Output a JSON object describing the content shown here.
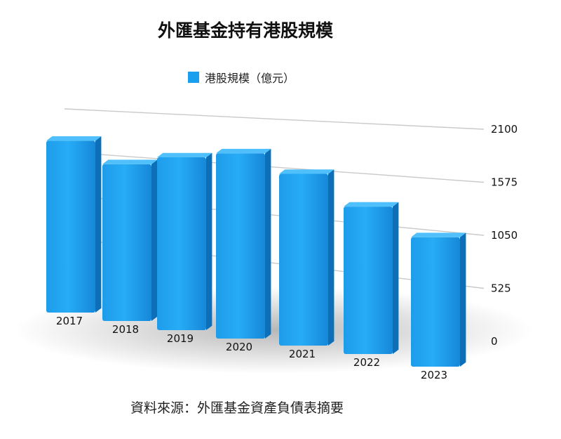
{
  "chart_data": {
    "type": "bar",
    "title": "外匯基金持有港股規模",
    "categories": [
      "2017",
      "2018",
      "2019",
      "2020",
      "2021",
      "2022",
      "2023"
    ],
    "series": [
      {
        "name": "港股規模（億元）",
        "values": [
          2090,
          1850,
          1980,
          2060,
          1850,
          1540,
          1310
        ],
        "color": "#1a9fee"
      }
    ],
    "yticks": [
      0,
      525,
      1050,
      1575,
      2100
    ],
    "ylim": [
      0,
      2100
    ],
    "grid": true,
    "legend_position": "top",
    "style": "3d"
  },
  "source_note": "資料來源：外匯基金資產負債表摘要"
}
